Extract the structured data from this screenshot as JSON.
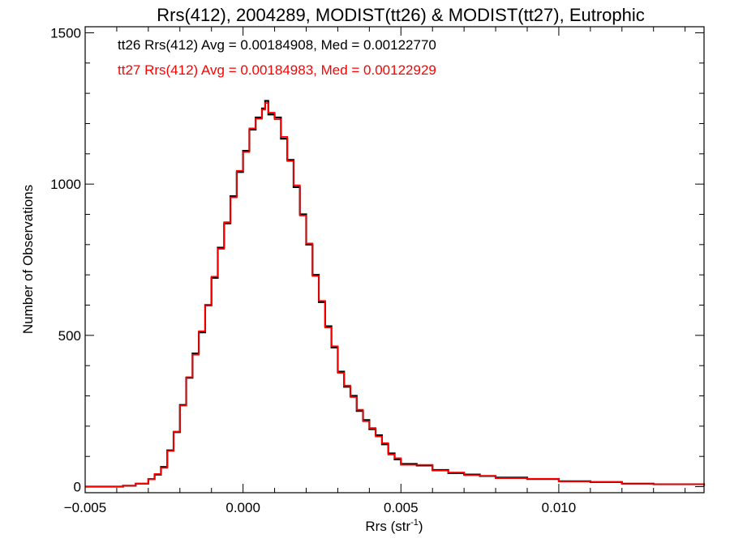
{
  "chart_data": {
    "type": "line",
    "title": "Rrs(412), 2004289, MODIST(tt26) & MODIST(tt27), Eutrophic",
    "xlabel_base": "Rrs (str",
    "xlabel_sup": "-1",
    "xlabel_end": ")",
    "ylabel": "Number of Observations",
    "xlim": [
      -0.005,
      0.0146
    ],
    "ylim": [
      -20,
      1520
    ],
    "x_ticks": [
      -0.005,
      0.0,
      0.005,
      0.01
    ],
    "x_tick_labels": [
      "−0.005",
      "0.000",
      "0.005",
      "0.010"
    ],
    "y_ticks": [
      0,
      500,
      1000,
      1500
    ],
    "y_tick_labels": [
      "0",
      "500",
      "1000",
      "1500"
    ],
    "grid": false,
    "annotations": [
      {
        "text": "tt26 Rrs(412) Avg = 0.00184908, Med = 0.00122770",
        "color": "#000000"
      },
      {
        "text": "tt27 Rrs(412) Avg = 0.00184983, Med = 0.00122929",
        "color": "#ff0000"
      }
    ],
    "series": [
      {
        "color": "#000000",
        "x": [
          -0.005,
          -0.0044,
          -0.0038,
          -0.0034,
          -0.003,
          -0.0028,
          -0.0026,
          -0.0024,
          -0.0022,
          -0.002,
          -0.0018,
          -0.0016,
          -0.0014,
          -0.0012,
          -0.001,
          -0.0008,
          -0.0006,
          -0.0004,
          -0.0002,
          0.0,
          0.0002,
          0.0004,
          0.0006,
          0.0007,
          0.0008,
          0.001,
          0.0012,
          0.0014,
          0.0016,
          0.0018,
          0.002,
          0.0022,
          0.0024,
          0.0026,
          0.0028,
          0.003,
          0.0032,
          0.0034,
          0.0036,
          0.0038,
          0.004,
          0.0042,
          0.0044,
          0.0046,
          0.0048,
          0.005,
          0.0055,
          0.006,
          0.0065,
          0.007,
          0.0075,
          0.008,
          0.009,
          0.01,
          0.011,
          0.012,
          0.013,
          0.0146
        ],
        "y": [
          0,
          0,
          3,
          10,
          25,
          40,
          65,
          120,
          180,
          270,
          360,
          440,
          510,
          600,
          690,
          790,
          870,
          960,
          1040,
          1110,
          1180,
          1220,
          1250,
          1275,
          1230,
          1220,
          1150,
          1080,
          990,
          900,
          800,
          700,
          610,
          530,
          460,
          380,
          330,
          300,
          250,
          220,
          190,
          170,
          140,
          110,
          90,
          75,
          70,
          55,
          45,
          40,
          35,
          30,
          25,
          18,
          15,
          10,
          8,
          3
        ]
      },
      {
        "color": "#ff0000",
        "x": [
          -0.005,
          -0.0044,
          -0.0038,
          -0.0034,
          -0.003,
          -0.0028,
          -0.0026,
          -0.0024,
          -0.0022,
          -0.002,
          -0.0018,
          -0.0016,
          -0.0014,
          -0.0012,
          -0.001,
          -0.0008,
          -0.0006,
          -0.0004,
          -0.0002,
          0.0,
          0.0002,
          0.0004,
          0.0006,
          0.0007,
          0.0008,
          0.001,
          0.0012,
          0.0014,
          0.0016,
          0.0018,
          0.002,
          0.0022,
          0.0024,
          0.0026,
          0.0028,
          0.003,
          0.0032,
          0.0034,
          0.0036,
          0.0038,
          0.004,
          0.0042,
          0.0044,
          0.0046,
          0.0048,
          0.005,
          0.0055,
          0.006,
          0.0065,
          0.007,
          0.0075,
          0.008,
          0.009,
          0.01,
          0.011,
          0.012,
          0.013,
          0.0146
        ],
        "y": [
          0,
          0,
          3,
          10,
          24,
          42,
          62,
          118,
          182,
          268,
          362,
          436,
          514,
          598,
          694,
          786,
          874,
          956,
          1044,
          1106,
          1184,
          1216,
          1246,
          1268,
          1236,
          1214,
          1156,
          1076,
          996,
          896,
          804,
          696,
          614,
          526,
          464,
          376,
          334,
          296,
          254,
          216,
          194,
          166,
          144,
          106,
          94,
          72,
          72,
          53,
          47,
          38,
          36,
          28,
          26,
          17,
          16,
          9,
          8,
          3
        ]
      }
    ]
  }
}
